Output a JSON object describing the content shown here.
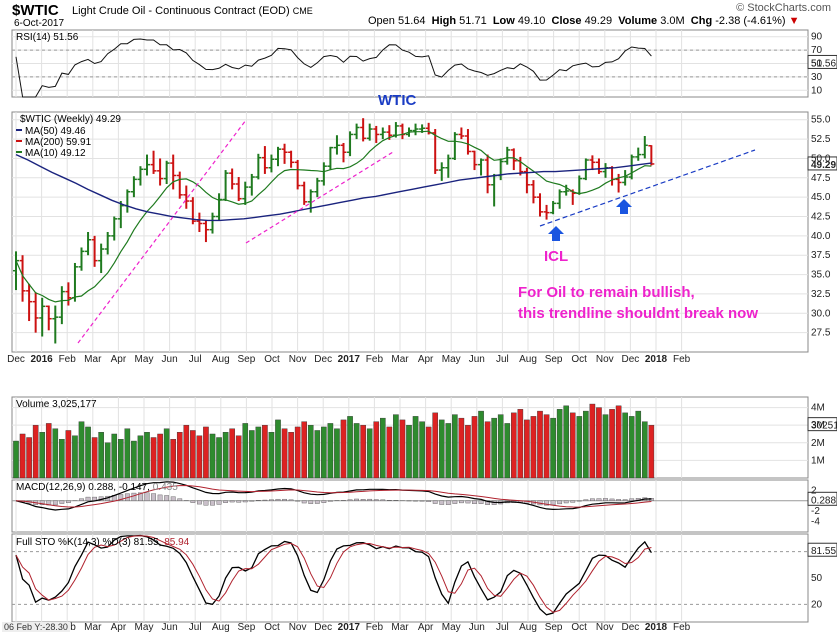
{
  "header": {
    "symbol": "$WTIC",
    "description": "Light Crude Oil - Continuous Contract (EOD)",
    "exchange": "CME",
    "date": "6-Oct-2017",
    "copyright": "© StockCharts.com",
    "open_label": "Open",
    "open": "51.64",
    "high_label": "High",
    "high": "51.71",
    "low_label": "Low",
    "low": "49.10",
    "close_label": "Close",
    "close": "49.29",
    "volume_label": "Volume",
    "volume": "3.0M",
    "chg_label": "Chg",
    "chg": "-2.38 (-4.61%)",
    "chg_arrow": "▼"
  },
  "panels": {
    "rsi": {
      "legend": "RSI(14) 51.56",
      "last": "51.56",
      "ticks": [
        "90",
        "70",
        "50",
        "30",
        "10"
      ]
    },
    "price": {
      "legend_main": "$WTIC (Weekly) 49.29",
      "legend_ma50": "MA(50) 49.46",
      "legend_ma200": "MA(200) 59.91",
      "legend_ma10": "MA(10) 49.12",
      "last": "49.29",
      "ticks": [
        "55.0",
        "52.5",
        "50.0",
        "47.5",
        "45.0",
        "42.5",
        "40.0",
        "37.5",
        "35.0",
        "32.5",
        "30.0",
        "27.5"
      ]
    },
    "volume": {
      "legend": "Volume 3,025,177",
      "last": "3025177",
      "ticks": [
        "4M",
        "3M",
        "2M",
        "1M"
      ]
    },
    "macd": {
      "legend_a": "MACD(12,26,9) 0.288, -0.147,",
      "legend_b": "0.435",
      "last": "0.288",
      "ticks": [
        "2",
        "-2",
        "-4"
      ]
    },
    "sto": {
      "legend_a": "Full STO %K(14,3) %D(3) 81.55,",
      "legend_b": "85.94",
      "last": "81.55",
      "ticks": [
        "50",
        "20"
      ]
    }
  },
  "x_axis": {
    "months": [
      "Dec",
      "2016",
      "Feb",
      "Mar",
      "Apr",
      "May",
      "Jun",
      "Jul",
      "Aug",
      "Sep",
      "Oct",
      "Nov",
      "Dec",
      "2017",
      "Feb",
      "Mar",
      "Apr",
      "May",
      "Jun",
      "Jul",
      "Aug",
      "Sep",
      "Oct",
      "Nov",
      "Dec",
      "2018",
      "Feb"
    ]
  },
  "annotations": {
    "title": "WTIC",
    "icl": "ICL",
    "note_line1": "For Oil to remain bullish,",
    "note_line2": "this trendline shouldnt break now"
  },
  "footer": {
    "cursor": "06 Feb Y:-28.30"
  },
  "colors": {
    "up": "#1f7a1f",
    "down": "#cc1111",
    "ma50": "#1a237e",
    "ma10": "#1e7a1e",
    "annot": "#ee22cc",
    "arrow": "#1a55e0"
  },
  "chart_data": {
    "type": "ohlc",
    "series": [
      {
        "name": "$WTIC (Weekly)",
        "values": [
          [
            35.5,
            38.0,
            33.0,
            36.8
          ],
          [
            36.8,
            37.5,
            31.5,
            32.9
          ],
          [
            32.9,
            33.8,
            29.0,
            31.5
          ],
          [
            31.5,
            32.7,
            27.5,
            29.4
          ],
          [
            29.4,
            32.0,
            27.0,
            30.9
          ],
          [
            30.9,
            31.0,
            27.8,
            29.3
          ],
          [
            29.3,
            31.0,
            26.1,
            29.5
          ],
          [
            29.5,
            33.5,
            28.6,
            32.8
          ],
          [
            32.8,
            34.0,
            31.0,
            32.0
          ],
          [
            32.0,
            36.5,
            31.5,
            36.0
          ],
          [
            36.0,
            38.5,
            35.5,
            38.0
          ],
          [
            38.0,
            40.5,
            37.5,
            39.5
          ],
          [
            39.5,
            40.0,
            36.0,
            36.8
          ],
          [
            36.8,
            39.0,
            35.2,
            38.3
          ],
          [
            38.3,
            40.5,
            37.6,
            40.0
          ],
          [
            40.0,
            42.5,
            39.4,
            42.2
          ],
          [
            42.2,
            44.5,
            41.0,
            43.9
          ],
          [
            43.9,
            46.0,
            43.0,
            45.7
          ],
          [
            45.7,
            47.7,
            45.0,
            47.3
          ],
          [
            47.3,
            49.0,
            46.5,
            48.6
          ],
          [
            48.6,
            50.5,
            47.8,
            49.2
          ],
          [
            49.2,
            51.0,
            48.0,
            48.4
          ],
          [
            48.4,
            50.0,
            46.5,
            47.4
          ],
          [
            47.4,
            49.7,
            46.7,
            49.4
          ],
          [
            49.4,
            50.5,
            46.0,
            47.8
          ],
          [
            47.8,
            48.3,
            44.8,
            45.3
          ],
          [
            45.3,
            46.5,
            43.5,
            44.5
          ],
          [
            44.5,
            45.0,
            41.5,
            41.9
          ],
          [
            41.9,
            43.0,
            40.5,
            41.6
          ],
          [
            41.6,
            42.0,
            39.2,
            40.8
          ],
          [
            40.8,
            43.0,
            40.3,
            42.5
          ],
          [
            42.5,
            45.5,
            42.0,
            44.7
          ],
          [
            44.7,
            48.5,
            44.5,
            48.1
          ],
          [
            48.1,
            48.7,
            46.0,
            46.7
          ],
          [
            46.7,
            47.6,
            44.5,
            44.8
          ],
          [
            44.8,
            47.0,
            44.0,
            46.3
          ],
          [
            46.3,
            48.0,
            45.2,
            47.6
          ],
          [
            47.6,
            50.6,
            47.3,
            50.1
          ],
          [
            50.1,
            51.6,
            48.0,
            48.8
          ],
          [
            48.8,
            50.5,
            48.2,
            49.9
          ],
          [
            49.9,
            51.5,
            49.0,
            51.2
          ],
          [
            51.2,
            51.9,
            49.3,
            50.8
          ],
          [
            50.8,
            51.0,
            48.8,
            49.5
          ],
          [
            49.5,
            49.8,
            46.0,
            46.5
          ],
          [
            46.5,
            47.0,
            44.0,
            44.4
          ],
          [
            44.4,
            46.0,
            43.0,
            45.7
          ],
          [
            45.7,
            47.5,
            45.0,
            47.1
          ],
          [
            47.1,
            49.5,
            46.5,
            49.0
          ],
          [
            49.0,
            51.5,
            48.5,
            51.4
          ],
          [
            51.4,
            53.0,
            50.5,
            51.7
          ],
          [
            51.7,
            52.0,
            49.5,
            50.8
          ],
          [
            50.8,
            53.5,
            50.3,
            53.1
          ],
          [
            53.1,
            54.5,
            52.5,
            54.0
          ],
          [
            54.0,
            55.2,
            52.2,
            52.6
          ],
          [
            52.6,
            54.5,
            52.3,
            53.8
          ],
          [
            53.8,
            54.2,
            52.0,
            53.1
          ],
          [
            53.1,
            54.0,
            52.5,
            53.4
          ],
          [
            53.4,
            54.3,
            52.4,
            53.0
          ],
          [
            53.0,
            54.7,
            52.7,
            54.2
          ],
          [
            54.2,
            54.5,
            52.5,
            53.1
          ],
          [
            53.1,
            54.0,
            52.8,
            53.6
          ],
          [
            53.6,
            54.5,
            53.0,
            53.8
          ],
          [
            53.8,
            54.4,
            53.3,
            53.9
          ],
          [
            53.9,
            54.6,
            53.1,
            53.3
          ],
          [
            53.3,
            53.8,
            48.0,
            48.5
          ],
          [
            48.5,
            49.5,
            47.1,
            48.8
          ],
          [
            48.8,
            50.5,
            47.5,
            50.0
          ],
          [
            50.0,
            53.4,
            49.8,
            53.1
          ],
          [
            53.1,
            54.0,
            52.5,
            52.9
          ],
          [
            52.9,
            53.8,
            50.5,
            50.9
          ],
          [
            50.9,
            51.0,
            48.5,
            49.2
          ],
          [
            49.2,
            50.0,
            47.8,
            49.8
          ],
          [
            49.8,
            50.5,
            45.5,
            46.6
          ],
          [
            46.6,
            48.0,
            43.8,
            47.8
          ],
          [
            47.8,
            50.0,
            47.2,
            49.6
          ],
          [
            49.6,
            51.5,
            49.2,
            51.1
          ],
          [
            51.1,
            51.3,
            48.5,
            49.7
          ],
          [
            49.7,
            50.2,
            47.8,
            48.3
          ],
          [
            48.3,
            48.8,
            45.5,
            46.6
          ],
          [
            46.6,
            47.2,
            44.2,
            45.0
          ],
          [
            45.0,
            45.5,
            42.5,
            43.1
          ],
          [
            43.1,
            44.0,
            42.1,
            43.0
          ],
          [
            43.0,
            44.5,
            42.8,
            44.2
          ],
          [
            44.2,
            46.0,
            43.5,
            45.7
          ],
          [
            45.7,
            46.6,
            45.2,
            45.8
          ],
          [
            45.8,
            46.0,
            44.0,
            45.5
          ],
          [
            45.5,
            47.8,
            45.3,
            47.4
          ],
          [
            47.4,
            50.0,
            47.2,
            49.8
          ],
          [
            49.8,
            50.4,
            48.5,
            49.5
          ],
          [
            49.5,
            50.0,
            48.0,
            48.3
          ],
          [
            48.3,
            49.4,
            47.5,
            48.8
          ],
          [
            48.8,
            49.0,
            46.5,
            47.3
          ],
          [
            47.3,
            48.0,
            45.6,
            46.9
          ],
          [
            46.9,
            48.5,
            46.5,
            47.6
          ],
          [
            47.6,
            50.5,
            47.3,
            50.2
          ],
          [
            50.2,
            51.4,
            49.7,
            50.5
          ],
          [
            50.5,
            52.9,
            50.0,
            51.7
          ],
          [
            51.64,
            51.71,
            49.1,
            49.29
          ]
        ]
      }
    ],
    "ma50": [
      50.5,
      49.8,
      49.0,
      48.2,
      47.5,
      46.8,
      46.0,
      45.3,
      44.6,
      44.0,
      43.5,
      43.1,
      42.8,
      42.5,
      42.3,
      42.1,
      42.0,
      42.0,
      42.1,
      42.2,
      42.4,
      42.6,
      42.8,
      43.1,
      43.4,
      43.7,
      44.0,
      44.3,
      44.6,
      44.9,
      45.1,
      45.4,
      45.7,
      46.0,
      46.3,
      46.6,
      46.9,
      47.2,
      47.4,
      47.6,
      47.8,
      48.0,
      48.1,
      48.2,
      48.3,
      48.3,
      48.4,
      48.5,
      48.6,
      48.7,
      48.8,
      49.0,
      49.2,
      49.4
    ],
    "ma200_last": 59.91,
    "volume_m": [
      2.1,
      2.5,
      2.3,
      3.0,
      2.6,
      3.1,
      2.8,
      2.2,
      2.7,
      2.4,
      3.2,
      2.9,
      2.3,
      2.6,
      2.0,
      2.5,
      2.2,
      2.8,
      2.1,
      2.4,
      2.6,
      2.3,
      2.5,
      2.8,
      2.2,
      2.6,
      3.0,
      2.7,
      2.4,
      2.9,
      2.5,
      2.3,
      2.6,
      2.8,
      2.4,
      3.1,
      2.7,
      2.9,
      3.0,
      2.6,
      3.3,
      2.8,
      2.6,
      2.9,
      3.2,
      3.0,
      2.7,
      2.9,
      3.1,
      2.8,
      3.3,
      3.5,
      3.1,
      3.0,
      2.8,
      3.2,
      3.4,
      2.9,
      3.6,
      3.3,
      3.0,
      3.5,
      3.2,
      2.9,
      3.7,
      3.3,
      3.1,
      3.6,
      3.4,
      3.0,
      3.5,
      3.8,
      3.2,
      3.4,
      3.6,
      3.1,
      3.7,
      3.9,
      3.3,
      3.5,
      3.8,
      3.6,
      3.4,
      3.9,
      4.1,
      3.7,
      3.5,
      3.8,
      4.2,
      4.0,
      3.6,
      3.9,
      4.1,
      3.7,
      3.5,
      3.8,
      3.2,
      3.0
    ],
    "ylim_price": [
      25.0,
      56.0
    ]
  }
}
